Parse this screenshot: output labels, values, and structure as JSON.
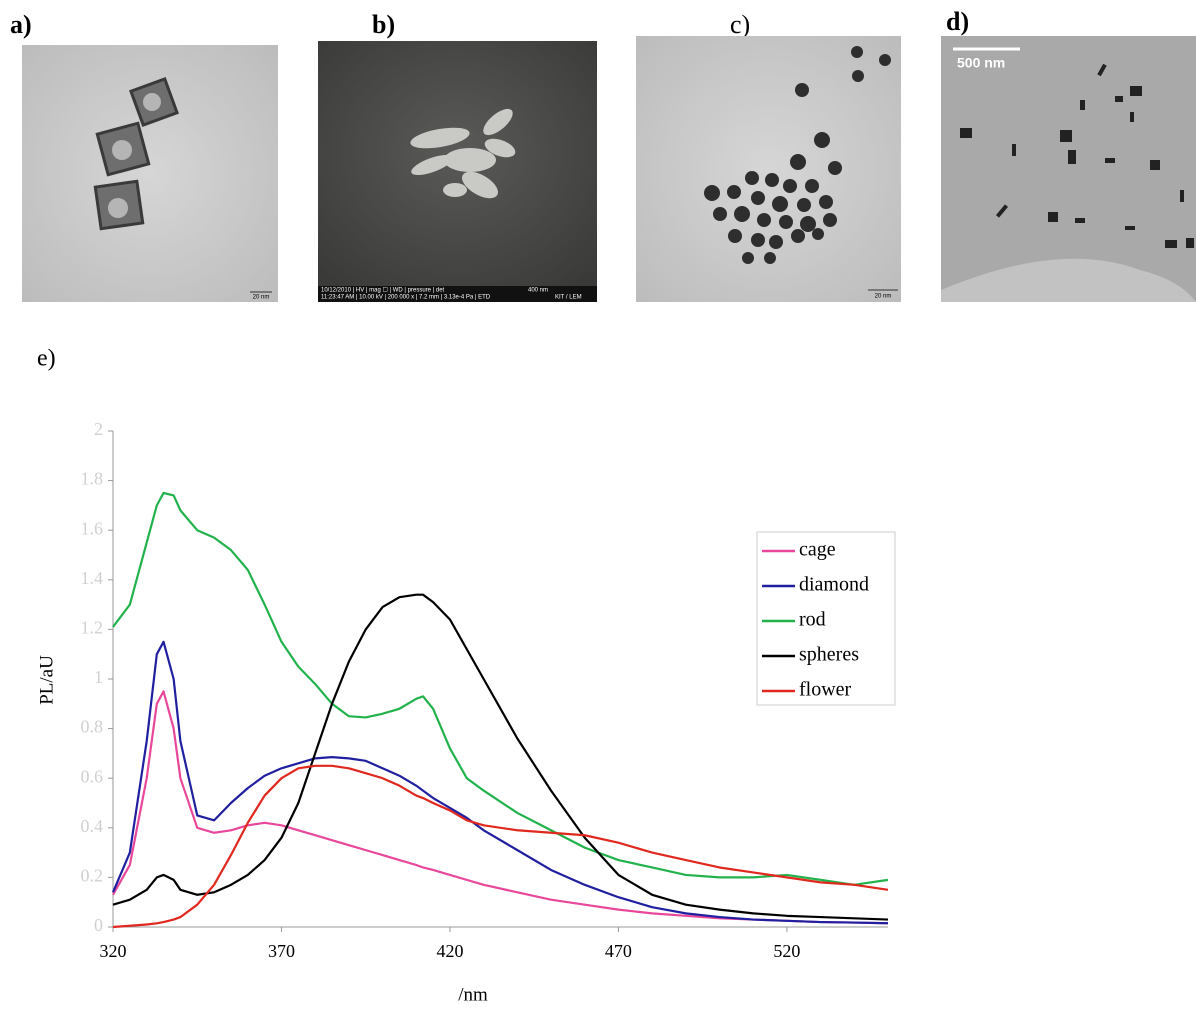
{
  "panels": [
    {
      "label": "a)",
      "scale_bar": "20 nm"
    },
    {
      "label": "b)",
      "info_bar": [
        "10/12/2010 | HV | mag ☐ | WD | pressure | det",
        "400 nm",
        "11:23:47 AM | 10.00 kV | 200 000 x | 7.2 mm | 3.13e-4 Pa | ETD",
        "KIT / LEM"
      ]
    },
    {
      "label": "c)",
      "scale_bar": "20 nm"
    },
    {
      "label": "d)",
      "scale_bar": "500 nm"
    }
  ],
  "chart_data": {
    "type": "line",
    "panel_label": "e)",
    "y_label": "PL/aU",
    "x_label": "/nm",
    "xlim": [
      320,
      550
    ],
    "xticks": [
      320,
      370,
      420,
      470,
      520
    ],
    "ylim": [
      0,
      2
    ],
    "yticks": [
      0,
      0.2,
      0.4,
      0.6,
      0.8,
      1,
      1.2,
      1.4,
      1.6,
      1.8,
      2
    ],
    "x": [
      320,
      325,
      330,
      333,
      335,
      338,
      340,
      345,
      350,
      355,
      360,
      365,
      370,
      375,
      380,
      385,
      390,
      395,
      400,
      405,
      410,
      412,
      415,
      420,
      425,
      430,
      440,
      450,
      460,
      470,
      480,
      490,
      500,
      510,
      520,
      530,
      540,
      550
    ],
    "series": [
      {
        "name": "cage",
        "color": "#e8479a",
        "values": [
          0.13,
          0.25,
          0.6,
          0.9,
          0.95,
          0.8,
          0.6,
          0.4,
          0.38,
          0.39,
          0.41,
          0.42,
          0.41,
          0.39,
          0.37,
          0.35,
          0.33,
          0.31,
          0.29,
          0.27,
          0.25,
          0.24,
          0.23,
          0.21,
          0.19,
          0.17,
          0.14,
          0.11,
          0.09,
          0.07,
          0.055,
          0.045,
          0.035,
          0.03,
          0.025,
          0.02,
          0.018,
          0.015
        ]
      },
      {
        "name": "diamond",
        "color": "#1f1fa0",
        "values": [
          0.14,
          0.3,
          0.75,
          1.1,
          1.15,
          1.0,
          0.75,
          0.45,
          0.43,
          0.5,
          0.56,
          0.61,
          0.64,
          0.66,
          0.68,
          0.685,
          0.68,
          0.67,
          0.64,
          0.61,
          0.57,
          0.55,
          0.52,
          0.48,
          0.44,
          0.39,
          0.31,
          0.23,
          0.17,
          0.12,
          0.08,
          0.055,
          0.04,
          0.03,
          0.025,
          0.02,
          0.018,
          0.015
        ]
      },
      {
        "name": "rod",
        "color": "#22b24c",
        "values": [
          1.21,
          1.3,
          1.55,
          1.7,
          1.75,
          1.74,
          1.68,
          1.6,
          1.57,
          1.52,
          1.44,
          1.3,
          1.15,
          1.05,
          0.98,
          0.9,
          0.85,
          0.845,
          0.86,
          0.88,
          0.92,
          0.93,
          0.88,
          0.72,
          0.6,
          0.55,
          0.46,
          0.39,
          0.32,
          0.27,
          0.24,
          0.21,
          0.2,
          0.2,
          0.21,
          0.19,
          0.17,
          0.19
        ]
      },
      {
        "name": "spheres",
        "color": "#000000",
        "values": [
          0.09,
          0.11,
          0.15,
          0.2,
          0.21,
          0.19,
          0.15,
          0.13,
          0.14,
          0.17,
          0.21,
          0.27,
          0.36,
          0.5,
          0.7,
          0.9,
          1.07,
          1.2,
          1.29,
          1.33,
          1.34,
          1.34,
          1.31,
          1.24,
          1.12,
          1.0,
          0.76,
          0.55,
          0.36,
          0.21,
          0.13,
          0.09,
          0.07,
          0.055,
          0.045,
          0.04,
          0.035,
          0.03
        ]
      },
      {
        "name": "flower",
        "color": "#e0281e",
        "values": [
          0.0,
          0.005,
          0.01,
          0.015,
          0.02,
          0.03,
          0.04,
          0.09,
          0.17,
          0.29,
          0.42,
          0.53,
          0.6,
          0.64,
          0.65,
          0.65,
          0.64,
          0.62,
          0.6,
          0.57,
          0.53,
          0.52,
          0.5,
          0.47,
          0.43,
          0.41,
          0.39,
          0.38,
          0.37,
          0.34,
          0.3,
          0.27,
          0.24,
          0.22,
          0.2,
          0.18,
          0.17,
          0.15
        ]
      }
    ]
  }
}
